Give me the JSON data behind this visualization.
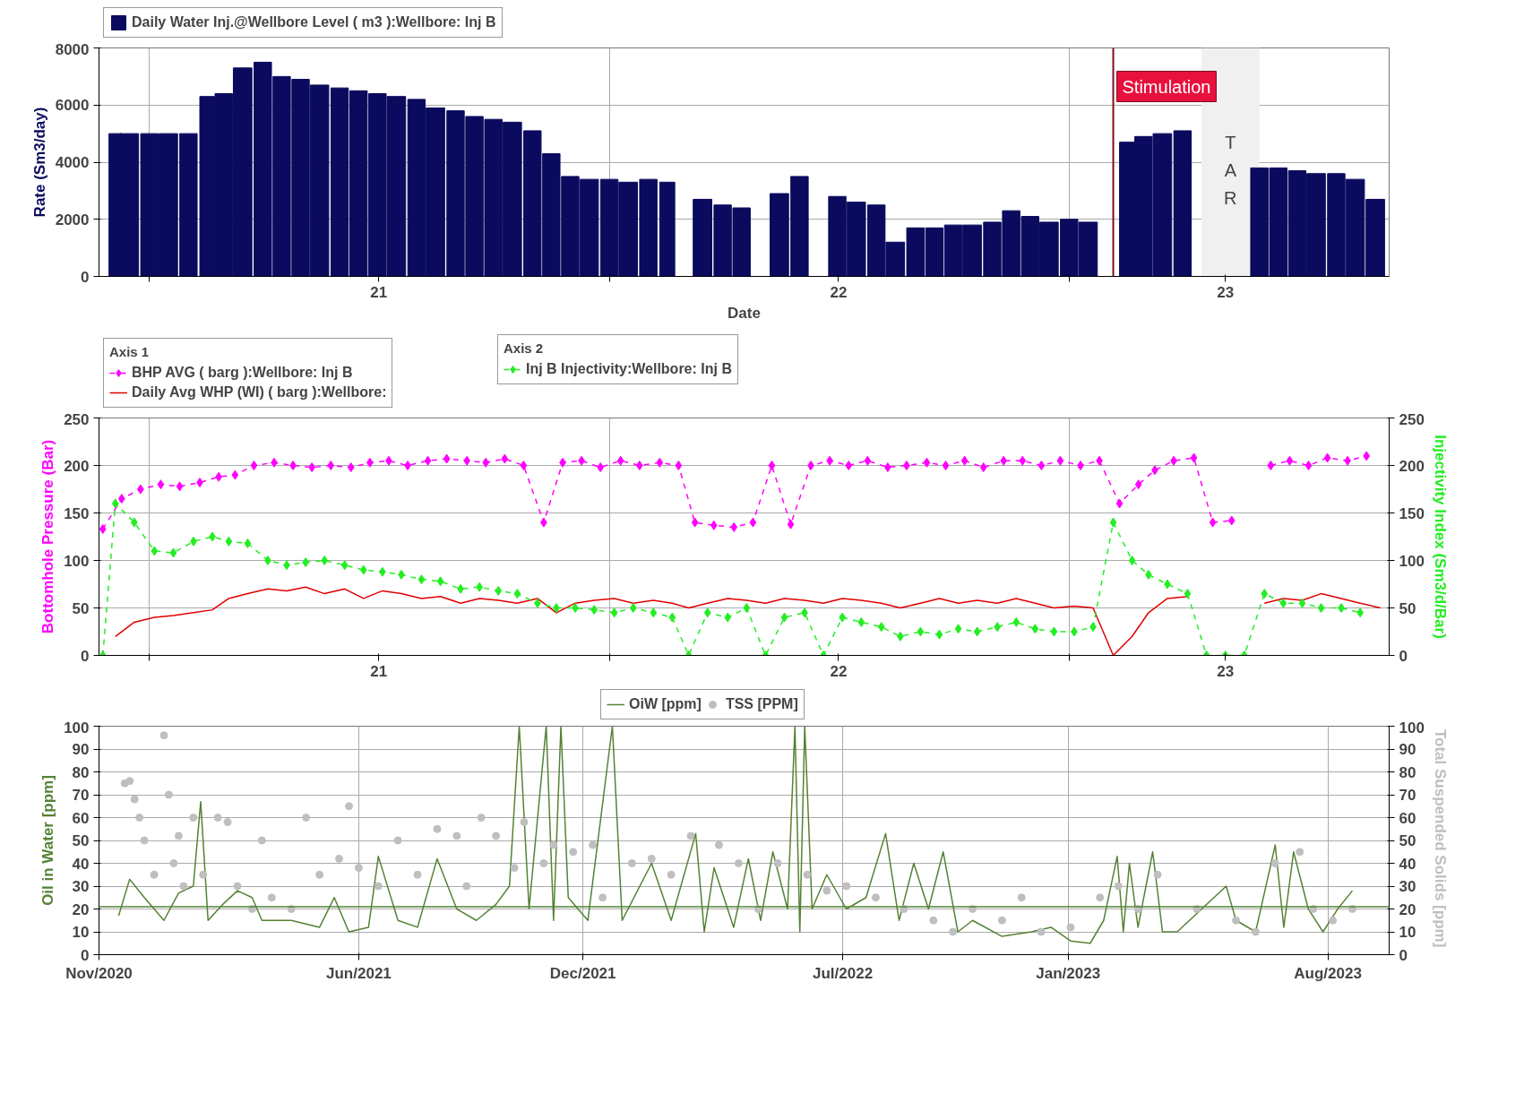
{
  "chart_data": [
    {
      "type": "bar",
      "xlabel": "Date",
      "ylabel": "Rate (Sm3/day)",
      "legend": "top left",
      "grid": true,
      "xlim": [
        "2020-11-22",
        "2023-09-12"
      ],
      "ylim": [
        0,
        8000
      ],
      "yticks": [
        0,
        2000,
        4000,
        6000,
        8000
      ],
      "xticks": [
        {
          "value": "2021-01-01",
          "label": null
        },
        {
          "value": "2021-07-02",
          "label": "21"
        },
        {
          "value": "2022-01-01",
          "label": null
        },
        {
          "value": "2022-07-02",
          "label": "22"
        },
        {
          "value": "2023-01-01",
          "label": null
        },
        {
          "value": "2023-05-05",
          "label": "23"
        }
      ],
      "series": [
        {
          "name": "Daily Water Inj.@Wellbore Level ( m3 ):Wellbore: Inj B",
          "color": "#0a0a5e",
          "x": [
            "2020-12-05",
            "2020-12-16",
            "2021-01-01",
            "2021-01-16",
            "2021-02-01",
            "2021-02-16",
            "2021-03-01",
            "2021-03-16",
            "2021-04-01",
            "2021-04-16",
            "2021-05-01",
            "2021-05-16",
            "2021-06-01",
            "2021-06-16",
            "2021-07-01",
            "2021-07-16",
            "2021-08-01",
            "2021-08-16",
            "2021-09-01",
            "2021-09-16",
            "2021-10-01",
            "2021-10-16",
            "2021-11-01",
            "2021-11-16",
            "2021-12-01",
            "2021-12-16",
            "2022-01-01",
            "2022-01-16",
            "2022-02-01",
            "2022-02-16",
            "2022-03-01",
            "2022-03-16",
            "2022-04-01",
            "2022-04-16",
            "2022-05-01",
            "2022-05-16",
            "2022-06-01",
            "2022-06-16",
            "2022-07-01",
            "2022-07-16",
            "2022-08-01",
            "2022-08-16",
            "2022-09-01",
            "2022-09-16",
            "2022-10-01",
            "2022-10-16",
            "2022-11-01",
            "2022-11-16",
            "2022-12-01",
            "2022-12-16",
            "2023-01-01",
            "2023-01-16",
            "2023-02-01",
            "2023-02-16",
            "2023-03-01",
            "2023-03-16",
            "2023-04-01",
            "2023-04-16",
            "2023-05-01",
            "2023-05-16",
            "2023-06-01",
            "2023-06-16",
            "2023-07-01",
            "2023-07-16",
            "2023-08-01",
            "2023-08-16",
            "2023-09-01"
          ],
          "values": [
            5000,
            5000,
            5000,
            5000,
            5000,
            6300,
            6400,
            7300,
            7500,
            7000,
            6900,
            6700,
            6600,
            6500,
            6400,
            6300,
            6200,
            5900,
            5800,
            5600,
            5500,
            5400,
            5100,
            4300,
            3500,
            3400,
            3400,
            3300,
            3400,
            3300,
            0,
            2700,
            2500,
            2400,
            0,
            2900,
            3500,
            0,
            2800,
            2600,
            2500,
            1200,
            1700,
            1700,
            1800,
            1800,
            1900,
            2300,
            2100,
            1900,
            2000,
            1900,
            0,
            4700,
            4900,
            5000,
            5100,
            0,
            0,
            0,
            3800,
            3800,
            3700,
            3600,
            3600,
            3400,
            2700
          ]
        }
      ],
      "ref_lines": [
        {
          "axis": "x",
          "value": "2023-02-05",
          "label": "Stimulation",
          "color": "#7b1020"
        }
      ],
      "bands": [
        {
          "axis": "x",
          "from": "2023-04-16",
          "to": "2023-06-01",
          "label": "TAR",
          "color": "#f0f0f0"
        }
      ]
    },
    {
      "type": "line",
      "ylabel": "Bottomhole Pressure (Bar)",
      "y2label": "Injectivity Index (Sm3/d/Bar)",
      "legend": "top left",
      "legend_title": [
        "Axis 1",
        "Axis 2"
      ],
      "grid": true,
      "xlim": [
        "2020-11-22",
        "2023-09-12"
      ],
      "ylim": [
        0,
        250
      ],
      "yticks": [
        0,
        50,
        100,
        150,
        200,
        250
      ],
      "y2lim": [
        0,
        250
      ],
      "y2ticks": [
        0,
        50,
        100,
        150,
        200,
        250
      ],
      "xticks": [
        {
          "value": "2021-01-01",
          "label": null
        },
        {
          "value": "2021-07-02",
          "label": "21"
        },
        {
          "value": "2022-01-01",
          "label": null
        },
        {
          "value": "2022-07-02",
          "label": "22"
        },
        {
          "value": "2023-01-01",
          "label": null
        },
        {
          "value": "2023-05-05",
          "label": "23"
        }
      ],
      "series": [
        {
          "name": "BHP AVG ( barg ):Wellbore: Inj B",
          "color": "#ff00ff",
          "marker": "diamond",
          "line_style": "dashed",
          "x": [
            "2020-11-25",
            "2020-12-10",
            "2020-12-25",
            "2021-01-10",
            "2021-01-25",
            "2021-02-10",
            "2021-02-25",
            "2021-03-10",
            "2021-03-25",
            "2021-04-10",
            "2021-04-25",
            "2021-05-10",
            "2021-05-25",
            "2021-06-10",
            "2021-06-25",
            "2021-07-10",
            "2021-07-25",
            "2021-08-10",
            "2021-08-25",
            "2021-09-10",
            "2021-09-25",
            "2021-10-10",
            "2021-10-25",
            "2021-11-10",
            "2021-11-25",
            "2021-12-10",
            "2021-12-25",
            "2022-01-10",
            "2022-01-25",
            "2022-02-10",
            "2022-02-25",
            "2022-03-10",
            "2022-03-25",
            "2022-04-10",
            "2022-04-25",
            "2022-05-10",
            "2022-05-25",
            "2022-06-10",
            "2022-06-25",
            "2022-07-10",
            "2022-07-25",
            "2022-08-10",
            "2022-08-25",
            "2022-09-10",
            "2022-09-25",
            "2022-10-10",
            "2022-10-25",
            "2022-11-10",
            "2022-11-25",
            "2022-12-10",
            "2022-12-25",
            "2023-01-10",
            "2023-01-25",
            "2023-02-10",
            "2023-02-25",
            "2023-03-10",
            "2023-03-25",
            "2023-04-10",
            "2023-04-25",
            "2023-05-10",
            "2023-05-25",
            "2023-06-10",
            "2023-06-25",
            "2023-07-10",
            "2023-07-25",
            "2023-08-10",
            "2023-08-25"
          ],
          "values": [
            133,
            165,
            175,
            180,
            178,
            182,
            188,
            190,
            200,
            203,
            200,
            198,
            200,
            198,
            203,
            205,
            200,
            205,
            207,
            205,
            203,
            207,
            200,
            140,
            203,
            205,
            198,
            205,
            200,
            203,
            200,
            140,
            137,
            135,
            140,
            200,
            138,
            200,
            205,
            200,
            205,
            198,
            200,
            203,
            200,
            205,
            198,
            205,
            205,
            200,
            205,
            200,
            205,
            160,
            180,
            195,
            205,
            208,
            140,
            142,
            null,
            200,
            205,
            200,
            208,
            205,
            210
          ]
        },
        {
          "name": "Daily Avg WHP (WI) ( barg ):Wellbore:",
          "color": "#e00000",
          "marker": "none",
          "line_style": "solid",
          "x": [
            "2020-12-05",
            "2020-12-20",
            "2021-01-05",
            "2021-01-20",
            "2021-02-05",
            "2021-02-20",
            "2021-03-05",
            "2021-03-20",
            "2021-04-05",
            "2021-04-20",
            "2021-05-05",
            "2021-05-20",
            "2021-06-05",
            "2021-06-20",
            "2021-07-05",
            "2021-07-20",
            "2021-08-05",
            "2021-08-20",
            "2021-09-05",
            "2021-09-20",
            "2021-10-05",
            "2021-10-20",
            "2021-11-05",
            "2021-11-20",
            "2021-12-05",
            "2021-12-20",
            "2022-01-05",
            "2022-01-20",
            "2022-02-05",
            "2022-02-20",
            "2022-03-05",
            "2022-03-20",
            "2022-04-05",
            "2022-04-20",
            "2022-05-05",
            "2022-05-20",
            "2022-06-05",
            "2022-06-20",
            "2022-07-05",
            "2022-07-20",
            "2022-08-05",
            "2022-08-20",
            "2022-09-05",
            "2022-09-20",
            "2022-10-05",
            "2022-10-20",
            "2022-11-05",
            "2022-11-20",
            "2022-12-05",
            "2022-12-20",
            "2023-01-05",
            "2023-01-20",
            "2023-02-05",
            "2023-02-20",
            "2023-03-05",
            "2023-03-20",
            "2023-04-05",
            "2023-04-20",
            "2023-05-05",
            "2023-05-20",
            "2023-06-05",
            "2023-06-20",
            "2023-07-05",
            "2023-07-20",
            "2023-08-05",
            "2023-08-20",
            "2023-09-05"
          ],
          "values": [
            20,
            35,
            40,
            42,
            45,
            48,
            60,
            65,
            70,
            68,
            72,
            65,
            70,
            60,
            68,
            65,
            60,
            62,
            55,
            60,
            58,
            55,
            60,
            45,
            55,
            58,
            60,
            55,
            58,
            55,
            50,
            55,
            60,
            58,
            55,
            60,
            58,
            55,
            60,
            58,
            55,
            50,
            55,
            60,
            55,
            58,
            55,
            60,
            55,
            50,
            52,
            50,
            0,
            20,
            45,
            60,
            62,
            null,
            null,
            null,
            55,
            60,
            58,
            65,
            60,
            55,
            50
          ]
        },
        {
          "name": "Inj B Injectivity:Wellbore: Inj B",
          "color": "#22ee22",
          "marker": "diamond",
          "line_style": "dashed",
          "axis": "y2",
          "x": [
            "2020-11-25",
            "2020-12-05",
            "2020-12-20",
            "2021-01-05",
            "2021-01-20",
            "2021-02-05",
            "2021-02-20",
            "2021-03-05",
            "2021-03-20",
            "2021-04-05",
            "2021-04-20",
            "2021-05-05",
            "2021-05-20",
            "2021-06-05",
            "2021-06-20",
            "2021-07-05",
            "2021-07-20",
            "2021-08-05",
            "2021-08-20",
            "2021-09-05",
            "2021-09-20",
            "2021-10-05",
            "2021-10-20",
            "2021-11-05",
            "2021-11-20",
            "2021-12-05",
            "2021-12-20",
            "2022-01-05",
            "2022-01-20",
            "2022-02-05",
            "2022-02-20",
            "2022-03-05",
            "2022-03-20",
            "2022-04-05",
            "2022-04-20",
            "2022-05-05",
            "2022-05-20",
            "2022-06-05",
            "2022-06-20",
            "2022-07-05",
            "2022-07-20",
            "2022-08-05",
            "2022-08-20",
            "2022-09-05",
            "2022-09-20",
            "2022-10-05",
            "2022-10-20",
            "2022-11-05",
            "2022-11-20",
            "2022-12-05",
            "2022-12-20",
            "2023-01-05",
            "2023-01-20",
            "2023-02-05",
            "2023-02-20",
            "2023-03-05",
            "2023-03-20",
            "2023-04-05",
            "2023-04-20",
            "2023-05-05",
            "2023-05-20",
            "2023-06-05",
            "2023-06-20",
            "2023-07-05",
            "2023-07-20",
            "2023-08-05",
            "2023-08-20"
          ],
          "values": [
            0,
            160,
            140,
            110,
            108,
            120,
            125,
            120,
            118,
            100,
            95,
            98,
            100,
            95,
            90,
            88,
            85,
            80,
            78,
            70,
            72,
            68,
            65,
            55,
            50,
            50,
            48,
            45,
            50,
            45,
            40,
            0,
            45,
            40,
            50,
            0,
            40,
            45,
            0,
            40,
            35,
            30,
            20,
            25,
            22,
            28,
            25,
            30,
            35,
            28,
            25,
            25,
            30,
            140,
            100,
            85,
            75,
            65,
            0,
            0,
            0,
            65,
            55,
            55,
            50,
            50,
            45
          ]
        }
      ]
    },
    {
      "type": "line",
      "ylabel": "Oil in Water [ppm]",
      "y2label": "Total Suspended  Solids [ppm]",
      "legend": "top",
      "grid": true,
      "xlim": [
        "2020-11-01",
        "2023-09-20"
      ],
      "ylim": [
        0,
        100
      ],
      "yticks": [
        0,
        10,
        20,
        30,
        40,
        50,
        60,
        70,
        80,
        90,
        100
      ],
      "y2lim": [
        0,
        100
      ],
      "y2ticks": [
        0,
        10,
        20,
        30,
        40,
        50,
        60,
        70,
        80,
        90,
        100
      ],
      "xticks": [
        {
          "value": "2020-11-01",
          "label": "Nov/2020"
        },
        {
          "value": "2021-06-01",
          "label": "Jun/2021"
        },
        {
          "value": "2021-12-01",
          "label": "Dec/2021"
        },
        {
          "value": "2022-07-01",
          "label": "Jul/2022"
        },
        {
          "value": "2023-01-01",
          "label": "Jan/2023"
        },
        {
          "value": "2023-08-01",
          "label": "Aug/2023"
        }
      ],
      "ref_lines": [
        {
          "axis": "y",
          "value": 21,
          "color": "#548235"
        }
      ],
      "series": [
        {
          "name": "OiW [ppm]",
          "color": "#548235",
          "type": "line",
          "marker": "none",
          "x": [
            "2020-11-17",
            "2020-11-26",
            "2020-12-08",
            "2020-12-24",
            "2021-01-05",
            "2021-01-17",
            "2021-01-23",
            "2021-01-29",
            "2021-02-10",
            "2021-02-22",
            "2021-03-06",
            "2021-03-14",
            "2021-04-07",
            "2021-04-30",
            "2021-05-12",
            "2021-05-24",
            "2021-06-09",
            "2021-06-17",
            "2021-07-03",
            "2021-07-19",
            "2021-08-04",
            "2021-08-20",
            "2021-09-05",
            "2021-09-21",
            "2021-10-02",
            "2021-10-10",
            "2021-10-18",
            "2021-11-01",
            "2021-11-07",
            "2021-11-13",
            "2021-11-19",
            "2021-12-05",
            "2021-12-25",
            "2022-01-02",
            "2022-01-26",
            "2022-02-11",
            "2022-03-03",
            "2022-03-10",
            "2022-03-18",
            "2022-04-03",
            "2022-04-15",
            "2022-04-25",
            "2022-05-05",
            "2022-05-17",
            "2022-05-23",
            "2022-05-27",
            "2022-05-31",
            "2022-06-06",
            "2022-06-18",
            "2022-07-04",
            "2022-07-20",
            "2022-08-05",
            "2022-08-16",
            "2022-08-28",
            "2022-09-09",
            "2022-09-21",
            "2022-10-03",
            "2022-10-15",
            "2022-11-08",
            "2022-12-02",
            "2022-12-18",
            "2023-01-03",
            "2023-01-19",
            "2023-01-30",
            "2023-02-10",
            "2023-02-15",
            "2023-02-20",
            "2023-02-27",
            "2023-03-11",
            "2023-03-19",
            "2023-03-31",
            "2023-05-10",
            "2023-05-18",
            "2023-06-03",
            "2023-06-19",
            "2023-06-26",
            "2023-07-04",
            "2023-07-16",
            "2023-07-28",
            "2023-08-09",
            "2023-08-21"
          ],
          "values": [
            17,
            33,
            25,
            15,
            27,
            30,
            67,
            15,
            22,
            28,
            25,
            15,
            15,
            12,
            25,
            10,
            12,
            43,
            15,
            12,
            42,
            20,
            15,
            22,
            30,
            100,
            20,
            100,
            15,
            100,
            25,
            15,
            100,
            15,
            40,
            15,
            53,
            10,
            38,
            12,
            42,
            15,
            45,
            20,
            100,
            10,
            100,
            20,
            35,
            20,
            25,
            53,
            15,
            40,
            20,
            45,
            10,
            15,
            8,
            10,
            12,
            6,
            5,
            15,
            43,
            10,
            40,
            12,
            45,
            10,
            10,
            30,
            15,
            10,
            48,
            12,
            45,
            20,
            10,
            20,
            28
          ]
        },
        {
          "name": "TSS [PPM]",
          "color": "#bfbfbf",
          "type": "scatter",
          "marker": "circle",
          "axis": "y2",
          "x": [
            "2020-11-22",
            "2020-11-26",
            "2020-11-30",
            "2020-12-04",
            "2020-12-08",
            "2020-12-16",
            "2020-12-24",
            "2020-12-28",
            "2021-01-01",
            "2021-01-05",
            "2021-01-09",
            "2021-01-17",
            "2021-01-25",
            "2021-02-06",
            "2021-02-14",
            "2021-02-22",
            "2021-03-06",
            "2021-03-14",
            "2021-03-22",
            "2021-04-07",
            "2021-04-19",
            "2021-04-30",
            "2021-05-16",
            "2021-05-24",
            "2021-06-01",
            "2021-06-17",
            "2021-07-03",
            "2021-07-19",
            "2021-08-04",
            "2021-08-20",
            "2021-08-28",
            "2021-09-09",
            "2021-09-21",
            "2021-10-06",
            "2021-10-14",
            "2021-10-30",
            "2021-11-07",
            "2021-11-23",
            "2021-12-09",
            "2021-12-17",
            "2022-01-10",
            "2022-01-26",
            "2022-02-11",
            "2022-02-27",
            "2022-03-22",
            "2022-04-07",
            "2022-04-23",
            "2022-05-09",
            "2022-06-02",
            "2022-06-18",
            "2022-07-04",
            "2022-07-28",
            "2022-08-20",
            "2022-09-13",
            "2022-09-29",
            "2022-10-15",
            "2022-11-08",
            "2022-11-24",
            "2022-12-10",
            "2023-01-03",
            "2023-01-27",
            "2023-02-11",
            "2023-02-27",
            "2023-03-15",
            "2023-04-16",
            "2023-05-18",
            "2023-06-03",
            "2023-06-19",
            "2023-07-09",
            "2023-07-20",
            "2023-08-05",
            "2023-08-21"
          ],
          "values": [
            75,
            76,
            68,
            60,
            50,
            35,
            96,
            70,
            40,
            52,
            30,
            60,
            35,
            60,
            58,
            30,
            20,
            50,
            25,
            20,
            60,
            35,
            42,
            65,
            38,
            30,
            50,
            35,
            55,
            52,
            30,
            60,
            52,
            38,
            58,
            40,
            48,
            45,
            48,
            25,
            40,
            42,
            35,
            52,
            48,
            40,
            20,
            40,
            35,
            28,
            30,
            25,
            20,
            15,
            10,
            20,
            15,
            25,
            10,
            12,
            25,
            30,
            20,
            35,
            20,
            15,
            10,
            40,
            45,
            20,
            15,
            20
          ]
        }
      ]
    }
  ]
}
